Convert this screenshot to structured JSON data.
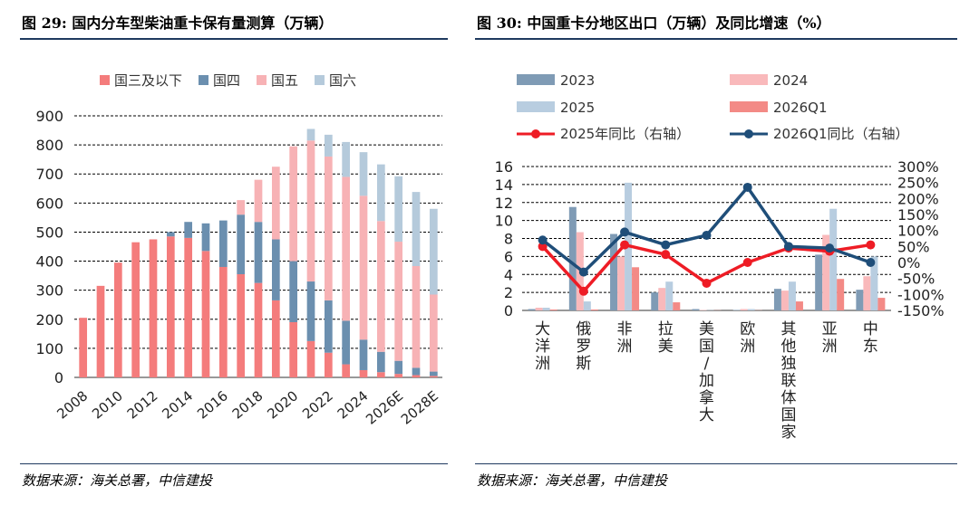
{
  "left": {
    "title": "图 29:  国内分车型柴油重卡保有量测算（万辆）",
    "source": "数据来源：海关总署，中信建投",
    "chart_data": {
      "type": "bar",
      "stacked": true,
      "title": "",
      "xlabel": "",
      "ylabel": "",
      "ylim": [
        0,
        900
      ],
      "yticks": [
        0,
        100,
        200,
        300,
        400,
        500,
        600,
        700,
        800,
        900
      ],
      "grid": true,
      "legend_position": "top",
      "categories": [
        "2008",
        "2009",
        "2010",
        "2011",
        "2012",
        "2013",
        "2014",
        "2015",
        "2016",
        "2017",
        "2018",
        "2019",
        "2020",
        "2021",
        "2022",
        "2023",
        "2024",
        "2025E",
        "2026E",
        "2027E",
        "2028E"
      ],
      "xtick_labels": [
        "2008",
        "",
        "2010",
        "",
        "2012",
        "",
        "2014",
        "",
        "2016",
        "",
        "2018",
        "",
        "2020",
        "",
        "2022",
        "",
        "2024",
        "",
        "2026E",
        "",
        "2028E"
      ],
      "series": [
        {
          "name": "国三及以下",
          "color": "#f47c7c",
          "values": [
            205,
            315,
            395,
            465,
            475,
            485,
            480,
            435,
            380,
            355,
            325,
            265,
            190,
            125,
            85,
            45,
            25,
            18,
            12,
            8,
            5
          ]
        },
        {
          "name": "国四",
          "color": "#6b8faf",
          "values": [
            0,
            0,
            0,
            0,
            0,
            15,
            55,
            95,
            160,
            205,
            210,
            210,
            210,
            205,
            180,
            150,
            105,
            70,
            45,
            25,
            15
          ]
        },
        {
          "name": "国五",
          "color": "#f7b2b5",
          "values": [
            0,
            0,
            0,
            0,
            0,
            0,
            0,
            0,
            0,
            50,
            145,
            250,
            395,
            485,
            495,
            495,
            495,
            450,
            410,
            350,
            265
          ]
        },
        {
          "name": "国六",
          "color": "#b5cadb",
          "values": [
            0,
            0,
            0,
            0,
            0,
            0,
            0,
            0,
            0,
            0,
            0,
            0,
            0,
            40,
            75,
            120,
            150,
            195,
            225,
            255,
            295
          ]
        }
      ]
    }
  },
  "right": {
    "title": "图 30:  中国重卡分地区出口（万辆）及同比增速（%）",
    "source": "数据来源：海关总署，中信建投",
    "chart_data": {
      "type": "bar",
      "title": "",
      "xlabel": "",
      "ylabel": "",
      "ylim": [
        0,
        16
      ],
      "yticks": [
        0,
        2,
        4,
        6,
        8,
        10,
        12,
        14,
        16
      ],
      "y2lim": [
        -150,
        300
      ],
      "y2ticks": [
        -150,
        -100,
        -50,
        0,
        50,
        100,
        150,
        200,
        250,
        300
      ],
      "y2tick_labels": [
        "-150%",
        "-100%",
        "-50%",
        "0%",
        "50%",
        "100%",
        "150%",
        "200%",
        "250%",
        "300%"
      ],
      "grid": true,
      "legend_position": "top",
      "categories": [
        "大洋洲",
        "俄罗斯",
        "非洲",
        "拉美",
        "美国/加拿大",
        "欧洲",
        "其他独联体国家",
        "亚洲",
        "中东"
      ],
      "bar_series": [
        {
          "name": "2023",
          "color": "#7f9bb5",
          "values": [
            0.15,
            11.5,
            8.5,
            2.0,
            0.15,
            0.05,
            2.4,
            6.2,
            2.3
          ]
        },
        {
          "name": "2024",
          "color": "#f9b9bb",
          "values": [
            0.3,
            8.7,
            6.0,
            2.5,
            0.05,
            0.15,
            2.2,
            8.4,
            3.8
          ]
        },
        {
          "name": "2025",
          "color": "#b8cde0",
          "values": [
            0.3,
            1.0,
            14.2,
            3.2,
            0.03,
            0.15,
            3.2,
            11.3,
            6.0
          ]
        },
        {
          "name": "2026Q1",
          "color": "#f38a86",
          "values": [
            0.1,
            0.1,
            4.8,
            0.9,
            0.02,
            0.02,
            1.0,
            3.5,
            1.4
          ]
        }
      ],
      "line_series": [
        {
          "name": "2025年同比（右轴）",
          "color": "#ee1c25",
          "axis": "right",
          "values": [
            50,
            -90,
            55,
            25,
            -65,
            0,
            45,
            35,
            55
          ]
        },
        {
          "name": "2026Q1同比（右轴）",
          "color": "#1f4e79",
          "axis": "right",
          "values": [
            70,
            -30,
            95,
            55,
            85,
            235,
            50,
            45,
            0
          ]
        }
      ]
    }
  }
}
